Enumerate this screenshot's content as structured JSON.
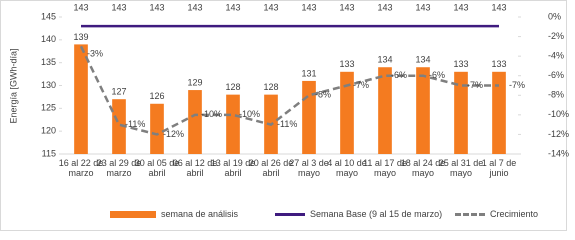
{
  "chart_data": {
    "type": "bar_line",
    "y_label": "Energía [GWh-día]",
    "categories": [
      "16 al 22 de marzo",
      "23 al 29 de marzo",
      "30 al 05 de abril",
      "06 al 12 de abril",
      "13 al 19 de abril",
      "20 al 26 de abril",
      "27 al 3 de mayo",
      "4 al 10 de mayo",
      "11 al 17 de mayo",
      "18 al 24 de mayo",
      "25 al 31 de mayo",
      "1 al 7 de junio"
    ],
    "series": [
      {
        "name": "semana de análisis",
        "type": "bar",
        "color": "#f47b20",
        "values": [
          139,
          127,
          126,
          129,
          128,
          128,
          131,
          133,
          134,
          134,
          133,
          133
        ]
      },
      {
        "name": "Semana Base (9 al 15 de marzo)",
        "type": "line",
        "color": "#3f1b7f",
        "values": [
          143,
          143,
          143,
          143,
          143,
          143,
          143,
          143,
          143,
          143,
          143,
          143
        ]
      },
      {
        "name": "Crecimiento",
        "type": "line",
        "dashed": true,
        "axis": "y2",
        "color": "#7f7f7f",
        "values": [
          -3,
          -11,
          -12,
          -10,
          -10,
          -11,
          -8,
          -7,
          -6,
          -6,
          -7,
          -7
        ],
        "value_labels": [
          "-3%",
          "-11%",
          "-12%",
          "-10%",
          "-10%",
          "-11%",
          "-8%",
          "-7%",
          "-6%",
          "-6%",
          "-7%",
          "-7%"
        ]
      }
    ],
    "ylim": [
      115,
      145
    ],
    "yticks": [
      115,
      120,
      125,
      130,
      135,
      140,
      145
    ],
    "y2lim": [
      -14,
      0
    ],
    "y2ticks": [
      {
        "value": 0,
        "label": "0%"
      },
      {
        "value": -2,
        "label": "-2%"
      },
      {
        "value": -4,
        "label": "-4%"
      },
      {
        "value": -6,
        "label": "-6%"
      },
      {
        "value": -8,
        "label": "-8%"
      },
      {
        "value": -10,
        "label": "-10%"
      },
      {
        "value": -12,
        "label": "-12%"
      },
      {
        "value": -14,
        "label": "-14%"
      }
    ],
    "legend": "bottom"
  }
}
